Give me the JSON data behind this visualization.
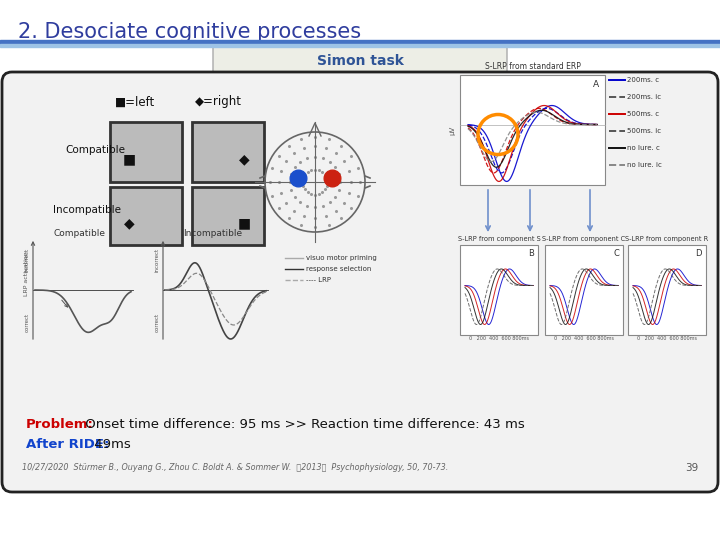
{
  "title": "2. Desociate cognitive processes",
  "title_color": "#2F3D9E",
  "title_fontsize": 15,
  "background_color": "#FFFFFF",
  "simon_task_label": "Simon task",
  "simon_box_bg": "#EDEEE6",
  "simon_box_border": "#AAAAAA",
  "left_legend": "■=left",
  "right_legend": "◆=right",
  "compatible_label": "Compatible",
  "incompatible_label": "Incompatible",
  "problem_text": "Problem:",
  "problem_detail": " Onset time difference: 95 ms >> Reaction time difference: 43 ms",
  "after_text": "After RIDE:",
  "after_detail": " 49ms",
  "footer_text": "10/27/2020  Stürmer B., Ouyang G., Zhou C. Boldt A. & Sommer W.  （2013）  Psychophysiology, 50, 70-73.",
  "slide_num": "39",
  "outer_box_bg": "#F2F2F2",
  "outer_box_border": "#222222",
  "blue_line_color": "#4472C4",
  "light_blue_line": "#9DC3E6"
}
